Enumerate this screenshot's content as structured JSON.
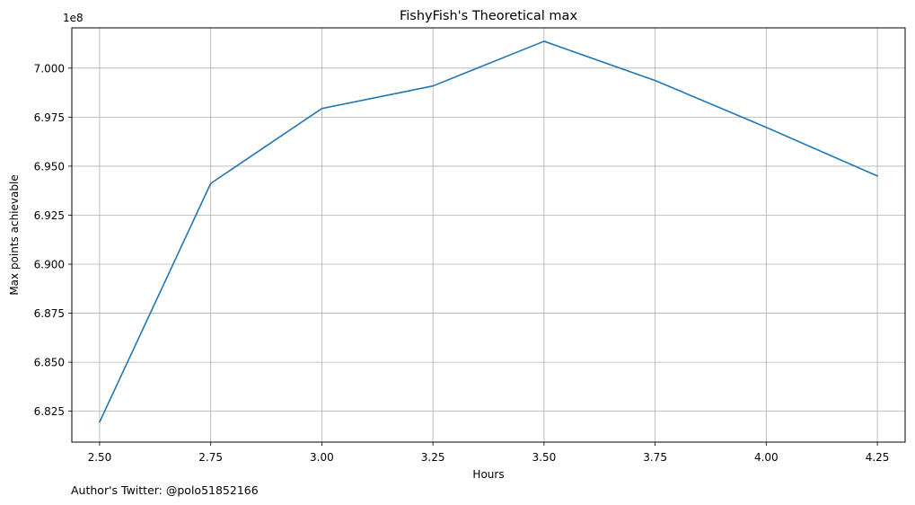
{
  "chart_data": {
    "type": "line",
    "title": "FishyFish's Theoretical max",
    "xlabel": "Hours",
    "ylabel": "Max points achievable",
    "y_multiplier": "1e8",
    "footer": "Author's Twitter: @polo51852166",
    "x": [
      2.5,
      2.75,
      3.0,
      3.25,
      3.5,
      3.75,
      4.0,
      4.25
    ],
    "series": [
      {
        "values": [
          6.8195,
          6.9412,
          6.9794,
          6.9909,
          7.0137,
          6.9937,
          6.9698,
          6.945
        ],
        "color": "#1f77b4"
      }
    ],
    "xlim": [
      2.4375,
      4.3125
    ],
    "ylim": [
      6.80925,
      7.02055
    ],
    "xticks": [
      2.5,
      2.75,
      3.0,
      3.25,
      3.5,
      3.75,
      4.0,
      4.25
    ],
    "xtick_labels": [
      "2.50",
      "2.75",
      "3.00",
      "3.25",
      "3.50",
      "3.75",
      "4.00",
      "4.25"
    ],
    "yticks": [
      6.825,
      6.85,
      6.875,
      6.9,
      6.925,
      6.95,
      6.975,
      7.0
    ],
    "ytick_labels": [
      "6.825",
      "6.850",
      "6.875",
      "6.900",
      "6.925",
      "6.950",
      "6.975",
      "7.000"
    ],
    "grid": true,
    "grid_color": "#b0b0b0"
  }
}
